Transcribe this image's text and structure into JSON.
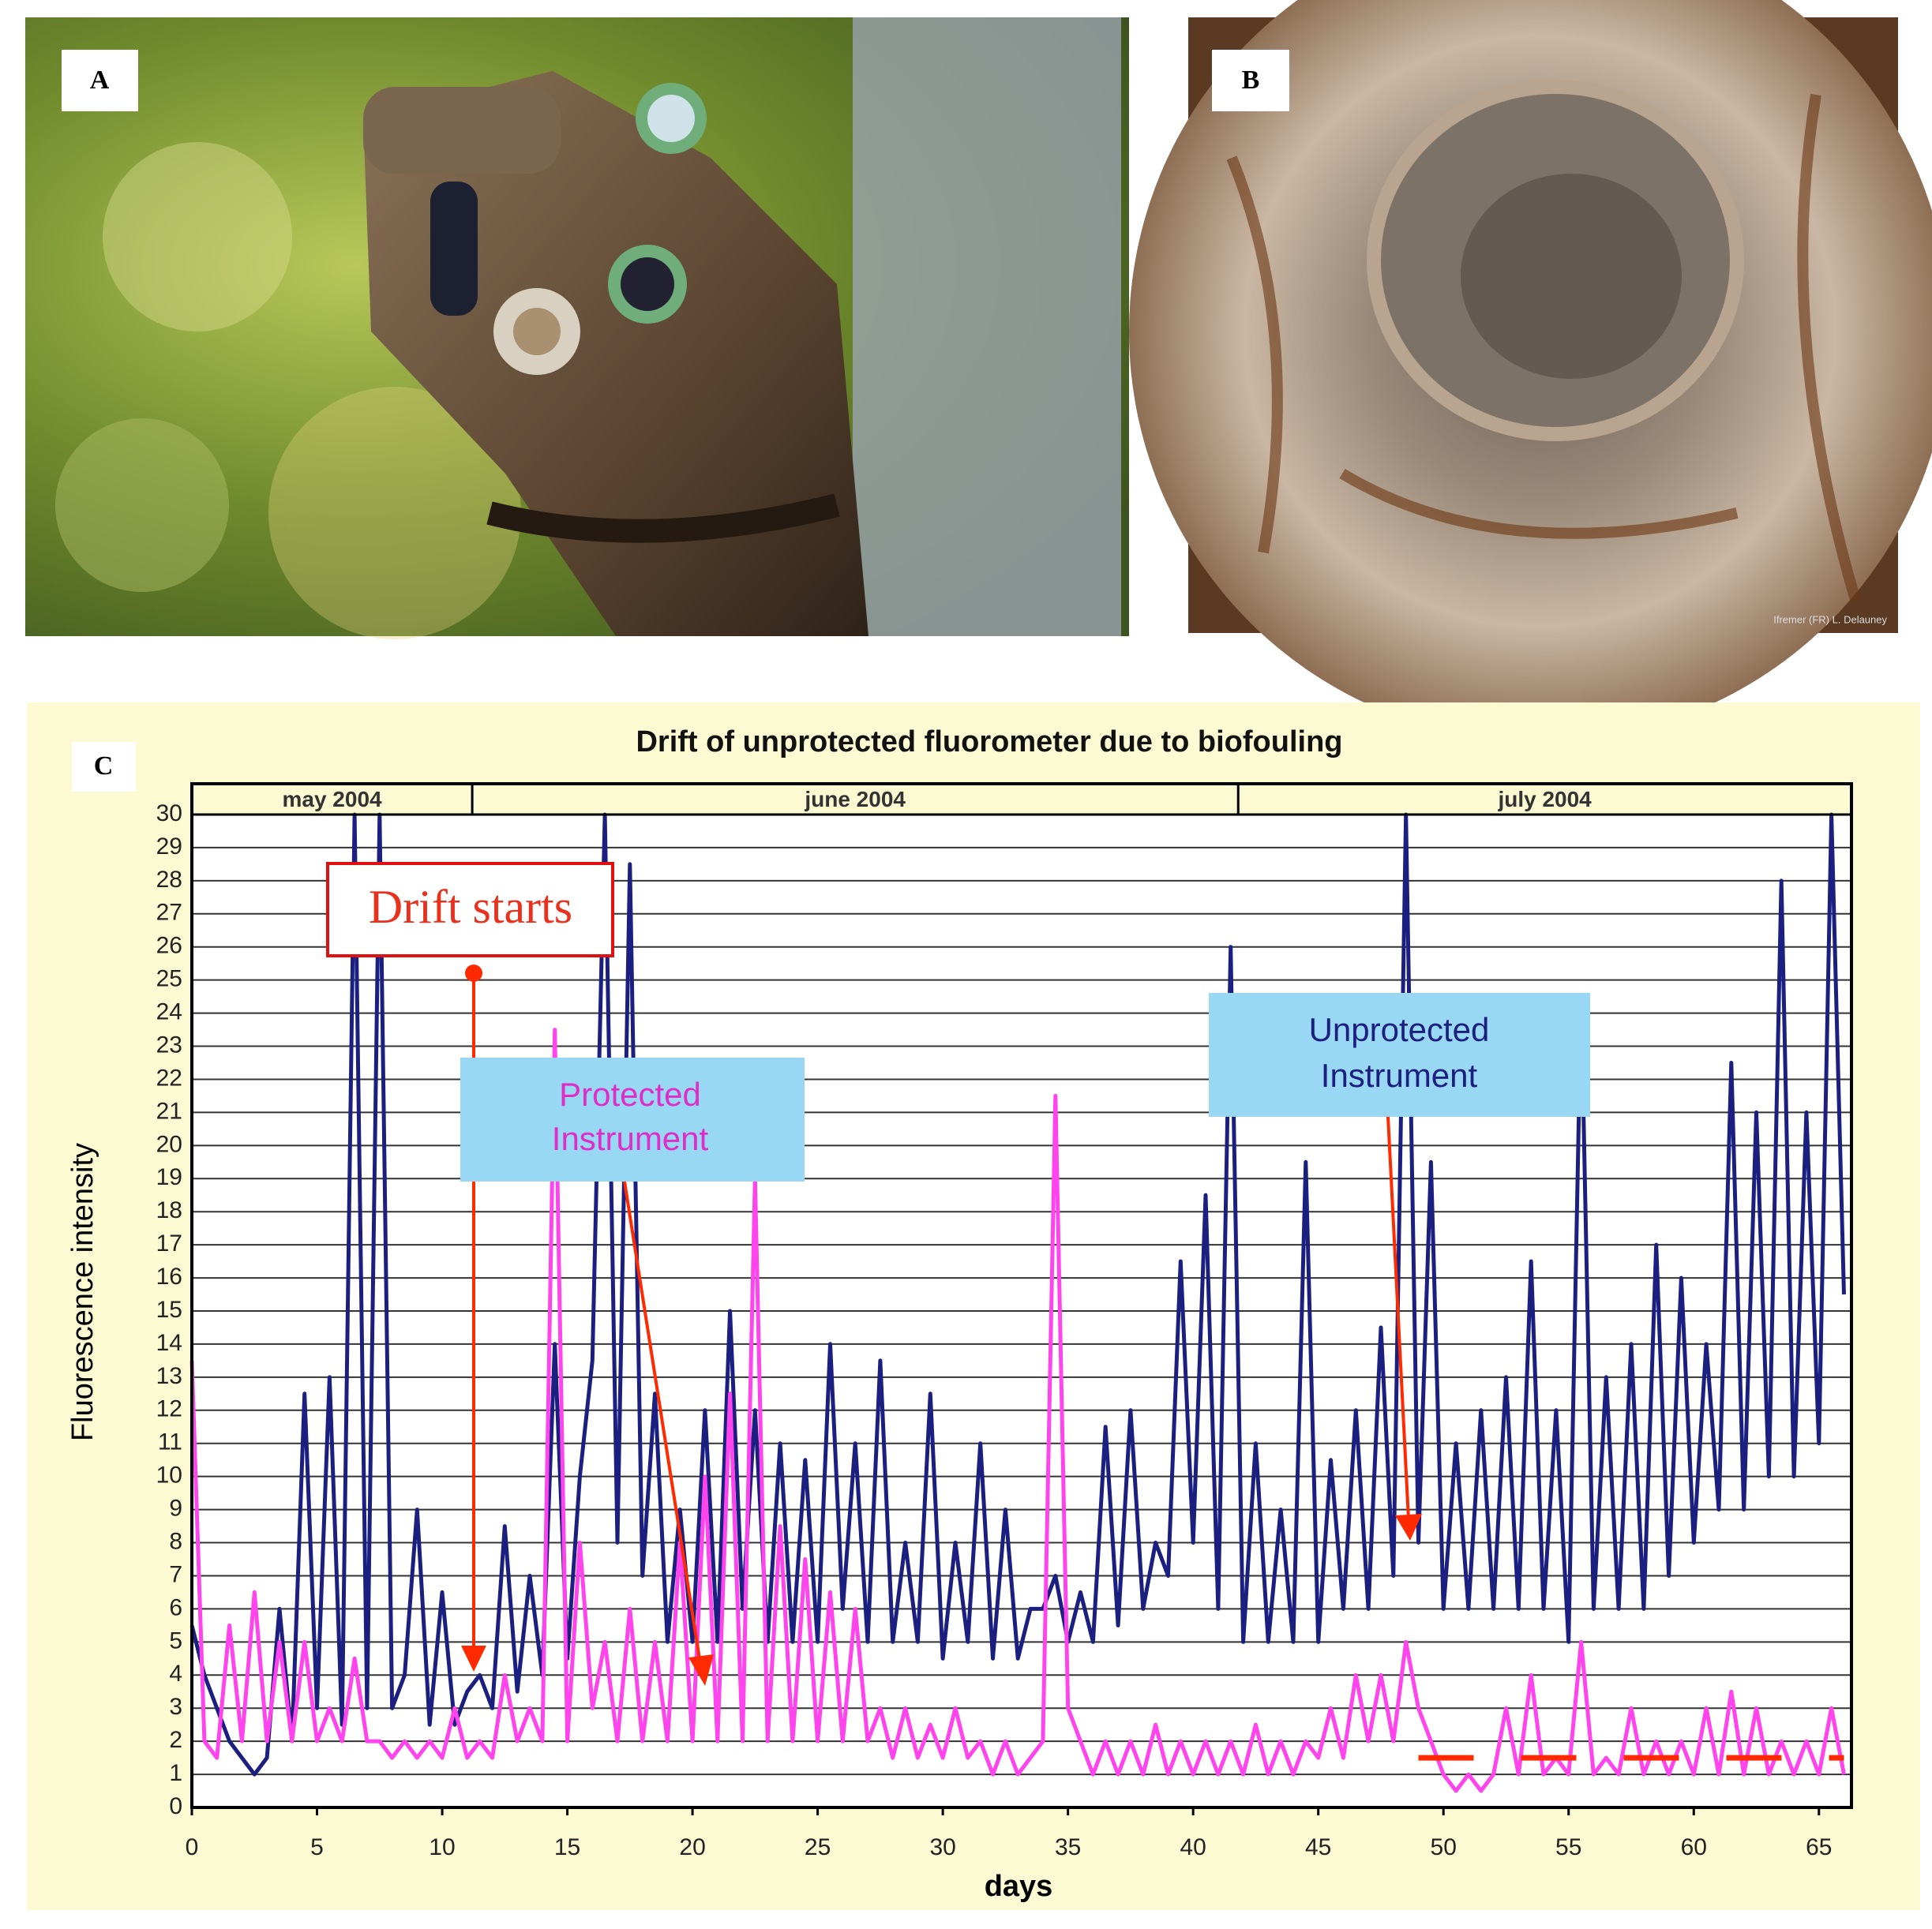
{
  "panel_labels": [
    "A",
    "B",
    "C"
  ],
  "photo_credit": "Ifremer (FR) L. Delauney",
  "chart_data": {
    "type": "line",
    "title": "Drift of unprotected fluorometer due to biofouling",
    "x_label": "days",
    "y_label": "Fluorescence intensity",
    "xlim": [
      0,
      66.3
    ],
    "ylim": [
      0,
      30
    ],
    "xticks": [
      0,
      5,
      10,
      15,
      20,
      25,
      30,
      35,
      40,
      45,
      50,
      55,
      60,
      65
    ],
    "yticks": [
      0,
      1,
      2,
      3,
      4,
      5,
      6,
      7,
      8,
      9,
      10,
      11,
      12,
      13,
      14,
      15,
      16,
      17,
      18,
      19,
      20,
      21,
      22,
      23,
      24,
      25,
      26,
      27,
      28,
      29,
      30
    ],
    "grid": true,
    "month_bands": [
      {
        "label": "may 2004",
        "start": 0,
        "end": 11.2
      },
      {
        "label": "june 2004",
        "start": 11.2,
        "end": 41.8
      },
      {
        "label": "july 2004",
        "start": 41.8,
        "end": 66.3
      }
    ],
    "annotations": [
      {
        "lines": [
          "Drift starts"
        ]
      },
      {
        "lines": [
          "Protected",
          "Instrument"
        ]
      },
      {
        "lines": [
          "Unprotected",
          "Instrument"
        ]
      }
    ],
    "reference_line": {
      "y": 1.5,
      "x_start": 49,
      "x_end": 66,
      "color": "#ff2a00"
    },
    "x": [
      0,
      0.5,
      1,
      1.5,
      2,
      2.5,
      3,
      3.5,
      4,
      4.5,
      5,
      5.5,
      6,
      6.5,
      7,
      7.5,
      8,
      8.5,
      9,
      9.5,
      10,
      10.5,
      11,
      11.5,
      12,
      12.5,
      13,
      13.5,
      14,
      14.5,
      15,
      15.5,
      16,
      16.5,
      17,
      17.5,
      18,
      18.5,
      19,
      19.5,
      20,
      20.5,
      21,
      21.5,
      22,
      22.5,
      23,
      23.5,
      24,
      24.5,
      25,
      25.5,
      26,
      26.5,
      27,
      27.5,
      28,
      28.5,
      29,
      29.5,
      30,
      30.5,
      31,
      31.5,
      32,
      32.5,
      33,
      33.5,
      34,
      34.5,
      35,
      35.5,
      36,
      36.5,
      37,
      37.5,
      38,
      38.5,
      39,
      39.5,
      40,
      40.5,
      41,
      41.5,
      42,
      42.5,
      43,
      43.5,
      44,
      44.5,
      45,
      45.5,
      46,
      46.5,
      47,
      47.5,
      48,
      48.5,
      49,
      49.5,
      50,
      50.5,
      51,
      51.5,
      52,
      52.5,
      53,
      53.5,
      54,
      54.5,
      55,
      55.5,
      56,
      56.5,
      57,
      57.5,
      58,
      58.5,
      59,
      59.5,
      60,
      60.5,
      61,
      61.5,
      62,
      62.5,
      63,
      63.5,
      64,
      64.5,
      65,
      65.5,
      66
    ],
    "series": [
      {
        "name": "Unprotected Instrument",
        "color": "#1b2080",
        "values": [
          5.5,
          4,
          3,
          2,
          1.5,
          1,
          1.5,
          6,
          2,
          12.5,
          3,
          13,
          2.5,
          30,
          3,
          30,
          3,
          4,
          9,
          2.5,
          6.5,
          2.5,
          3.5,
          4,
          3,
          8.5,
          3.5,
          7,
          4,
          14,
          4.5,
          10,
          13.5,
          30,
          8,
          28.5,
          7,
          12.5,
          5,
          9,
          5,
          12,
          5,
          15,
          6,
          12,
          5,
          11,
          5,
          10.5,
          5,
          14,
          6,
          11,
          5,
          13.5,
          5,
          8,
          5,
          12.5,
          4.5,
          8,
          5,
          11,
          4.5,
          9,
          4.5,
          6,
          6,
          7,
          5,
          6.5,
          5,
          11.5,
          5.5,
          12,
          6,
          8,
          7,
          16.5,
          8,
          18.5,
          6,
          26,
          5,
          11,
          5,
          9,
          5,
          19.5,
          5,
          10.5,
          6,
          12,
          6,
          14.5,
          7,
          30,
          8,
          19.5,
          6,
          11,
          6,
          12,
          6,
          13,
          6,
          16.5,
          6,
          12,
          5,
          24.5,
          6,
          13,
          6,
          14,
          6,
          17,
          7,
          16,
          8,
          14,
          9,
          22.5,
          9,
          21,
          10,
          28,
          10,
          21,
          11,
          30,
          15.5
        ]
      },
      {
        "name": "Protected Instrument",
        "color": "#ff44ee",
        "values": [
          13.5,
          2,
          1.5,
          5.5,
          2,
          6.5,
          2,
          5,
          2,
          5,
          2,
          3,
          2,
          4.5,
          2,
          2,
          1.5,
          2,
          1.5,
          2,
          1.5,
          3,
          1.5,
          2,
          1.5,
          4,
          2,
          3,
          2,
          23.5,
          2,
          8,
          3,
          5,
          2,
          6,
          2,
          5,
          2,
          8,
          2,
          10,
          2,
          12.5,
          2,
          19,
          2,
          8.5,
          2,
          7.5,
          2,
          6.5,
          2,
          6,
          2,
          3,
          1.5,
          3,
          1.5,
          2.5,
          1.5,
          3,
          1.5,
          2,
          1,
          2,
          1,
          1.5,
          2,
          21.5,
          3,
          2,
          1,
          2,
          1,
          2,
          1,
          2.5,
          1,
          2,
          1,
          2,
          1,
          2,
          1,
          2.5,
          1,
          2,
          1,
          2,
          1.5,
          3,
          1.5,
          4,
          2,
          4,
          2,
          5,
          3,
          2,
          1,
          0.5,
          1,
          0.5,
          1,
          3,
          1,
          4,
          1,
          1.5,
          1,
          5,
          1,
          1.5,
          1,
          3,
          1,
          2,
          1,
          2,
          1,
          3,
          1,
          3.5,
          1,
          3,
          1,
          2,
          1,
          2,
          1,
          3,
          1
        ]
      }
    ]
  }
}
